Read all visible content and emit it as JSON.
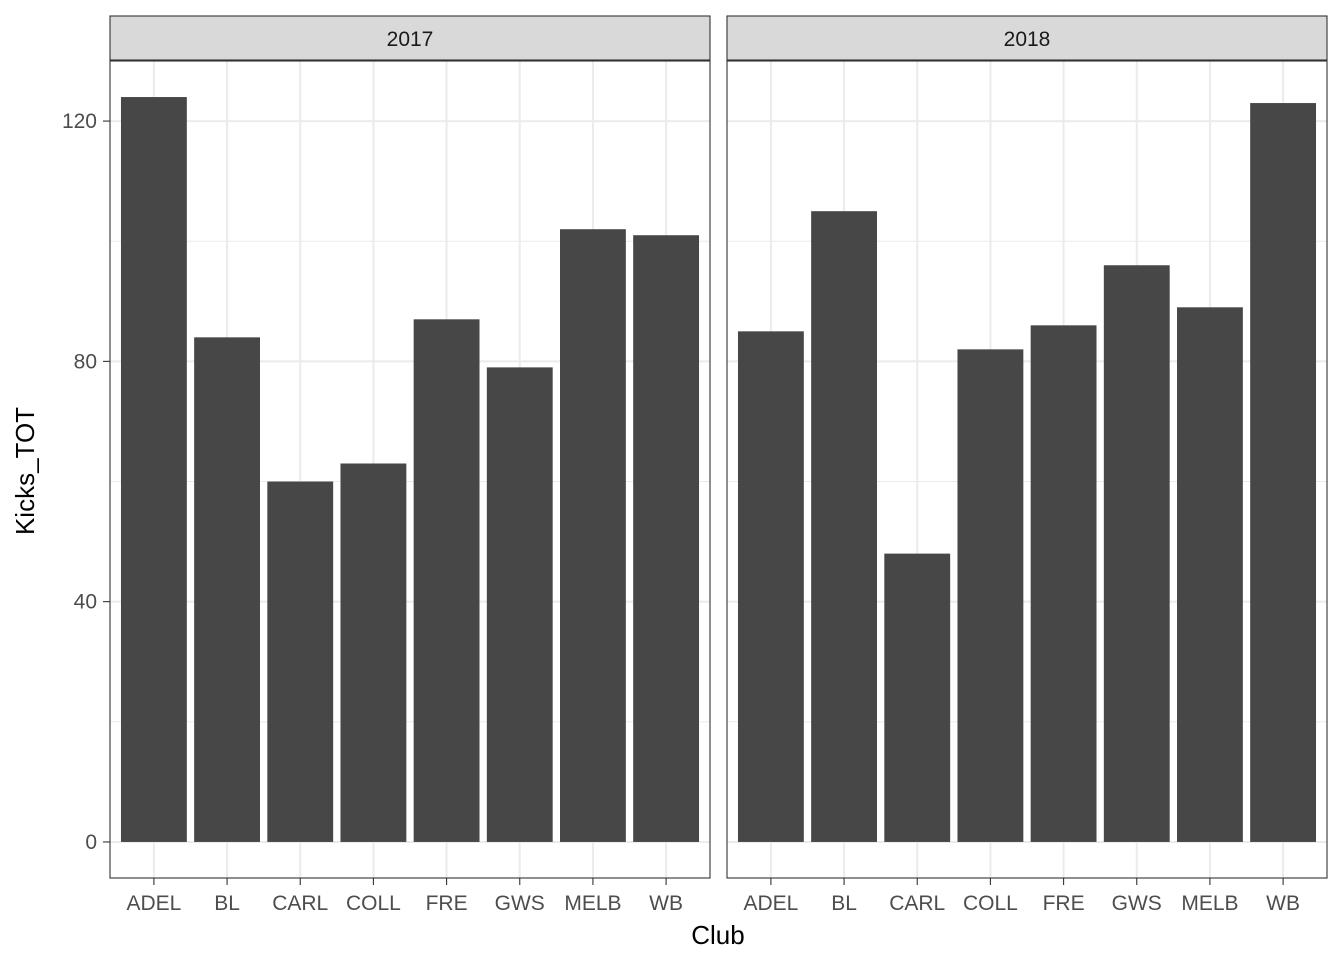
{
  "chart_data": {
    "type": "bar",
    "xlabel": "Club",
    "ylabel": "Kicks_TOT",
    "ylim": [
      -6,
      130
    ],
    "yticks": [
      0,
      40,
      80,
      120
    ],
    "grid": true,
    "bar_color": "#474747",
    "strip_fill": "#d9d9d9",
    "grid_color": "#ebebeb",
    "categories": [
      "ADEL",
      "BL",
      "CARL",
      "COLL",
      "FRE",
      "GWS",
      "MELB",
      "WB"
    ],
    "panels": [
      {
        "label": "2017",
        "values": [
          124,
          84,
          60,
          63,
          87,
          79,
          102,
          101
        ]
      },
      {
        "label": "2018",
        "values": [
          85,
          105,
          48,
          82,
          86,
          96,
          89,
          123
        ]
      }
    ]
  }
}
